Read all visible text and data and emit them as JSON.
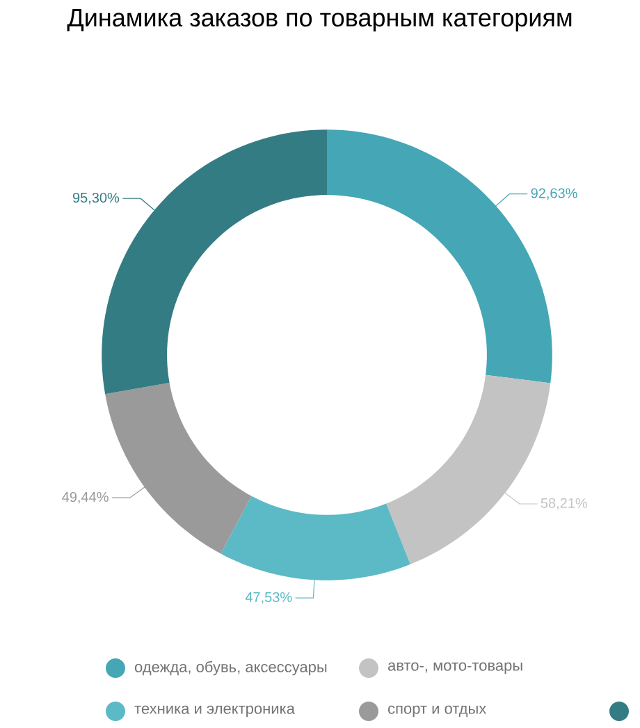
{
  "chart_data": {
    "type": "donut",
    "title": "Динамика заказов по товарным категориям",
    "categories": [
      "одежда, обувь, аксессуары",
      "авто-, мото-товары",
      "техника и электроника",
      "спорт и отдых",
      null
    ],
    "values": [
      92.63,
      58.21,
      47.53,
      49.44,
      95.3
    ],
    "colors": [
      "#45a6b5",
      "#c3c3c3",
      "#5cb9c6",
      "#9a9a9a",
      "#347c83"
    ],
    "value_labels": [
      "92,63%",
      "58,21%",
      "47,53%",
      "49,44%",
      "95,30%"
    ],
    "legend": "bottom"
  }
}
